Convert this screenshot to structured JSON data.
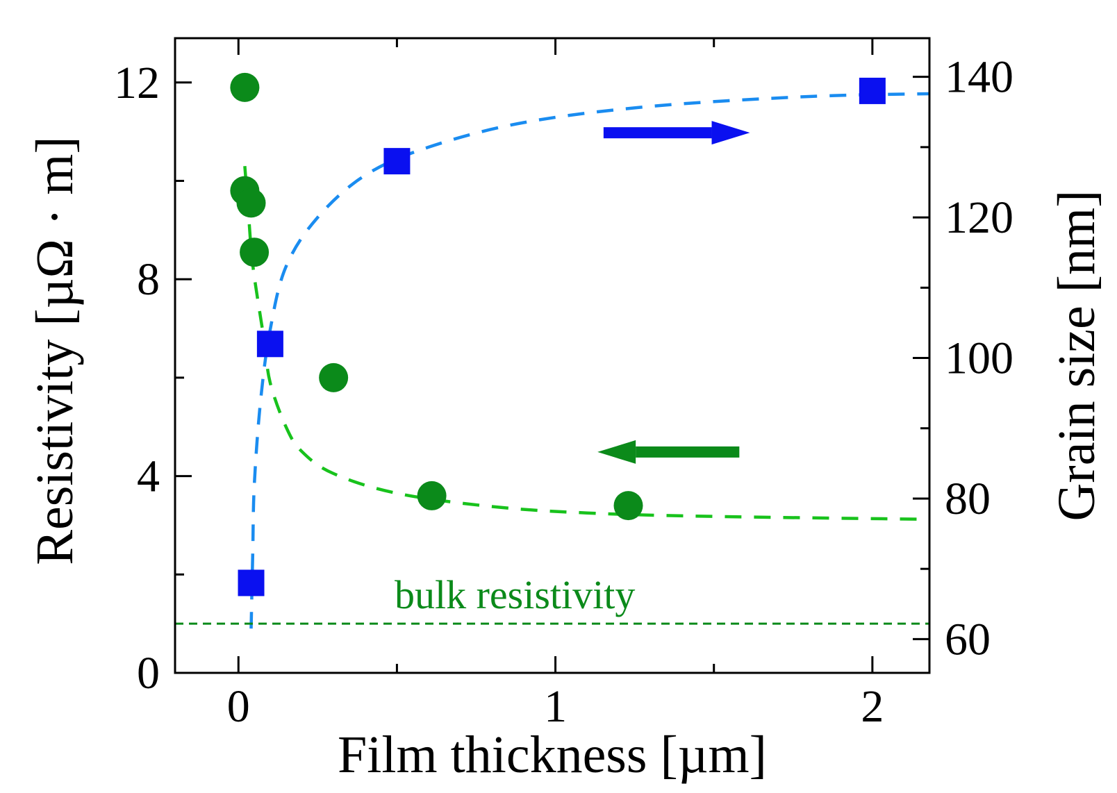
{
  "chart_data": {
    "type": "scatter",
    "title": "",
    "x": {
      "label": "Film thickness [µm]",
      "range": [
        -0.2,
        2.18
      ],
      "ticks": [
        0,
        1,
        2
      ],
      "tick_labels": [
        "0",
        "1",
        "2"
      ],
      "minor_ticks": [
        0.5,
        1.5
      ]
    },
    "y_left": {
      "label": "Resistivity [µΩ · m]",
      "range": [
        0,
        12.9
      ],
      "ticks": [
        0,
        4,
        8,
        12
      ],
      "tick_labels": [
        "0",
        "4",
        "8",
        "12"
      ],
      "minor_ticks": [
        2,
        6,
        10
      ]
    },
    "y_right": {
      "label": "Grain size [nm]",
      "range": [
        55.2,
        145.5
      ],
      "ticks": [
        60,
        80,
        100,
        120,
        140
      ],
      "tick_labels": [
        "60",
        "80",
        "100",
        "120",
        "140"
      ],
      "minor_ticks": [
        70,
        90,
        110,
        130
      ]
    },
    "grid": false,
    "series": [
      {
        "name": "Resistivity",
        "axis": "left",
        "marker": "circle",
        "color": "#0b8a1a",
        "points": [
          {
            "x": 0.02,
            "y": 11.9
          },
          {
            "x": 0.02,
            "y": 9.8
          },
          {
            "x": 0.04,
            "y": 9.55
          },
          {
            "x": 0.05,
            "y": 8.55
          },
          {
            "x": 0.3,
            "y": 6.0
          },
          {
            "x": 0.61,
            "y": 3.6
          },
          {
            "x": 1.23,
            "y": 3.4
          }
        ]
      },
      {
        "name": "Grain size",
        "axis": "right",
        "marker": "square",
        "color": "#0a10f0",
        "points": [
          {
            "x": 0.04,
            "y": 68
          },
          {
            "x": 0.1,
            "y": 102
          },
          {
            "x": 0.5,
            "y": 128
          },
          {
            "x": 2.0,
            "y": 138
          }
        ]
      }
    ],
    "fits": [
      {
        "name": "resistivity fit",
        "axis": "left",
        "color": "#18c21c",
        "style": "dashed",
        "points": [
          [
            0.02,
            10.3
          ],
          [
            0.03,
            9.5
          ],
          [
            0.045,
            8.3
          ],
          [
            0.08,
            6.8
          ],
          [
            0.1,
            5.9
          ],
          [
            0.15,
            5.0
          ],
          [
            0.2,
            4.5
          ],
          [
            0.3,
            4.05
          ],
          [
            0.5,
            3.65
          ],
          [
            0.8,
            3.38
          ],
          [
            1.1,
            3.25
          ],
          [
            1.5,
            3.18
          ],
          [
            2.18,
            3.12
          ]
        ]
      },
      {
        "name": "grain size fit",
        "axis": "right",
        "color": "#1a8cf0",
        "style": "dashed",
        "points": [
          [
            0.04,
            61.5
          ],
          [
            0.045,
            72
          ],
          [
            0.05,
            82
          ],
          [
            0.07,
            94
          ],
          [
            0.1,
            104
          ],
          [
            0.15,
            113
          ],
          [
            0.25,
            120
          ],
          [
            0.4,
            126
          ],
          [
            0.6,
            130
          ],
          [
            0.9,
            133.5
          ],
          [
            1.3,
            135.8
          ],
          [
            1.8,
            137.2
          ],
          [
            2.18,
            137.6
          ]
        ]
      }
    ],
    "reference_line": {
      "label": "bulk resistivity",
      "axis": "left",
      "y": 1.0,
      "color": "#0b8a1a",
      "style": "dotted"
    },
    "annotations": [
      {
        "name": "right-axis-arrow",
        "direction": "right",
        "color": "#0a10f0"
      },
      {
        "name": "left-axis-arrow",
        "direction": "left",
        "color": "#0b8a1a"
      }
    ]
  }
}
